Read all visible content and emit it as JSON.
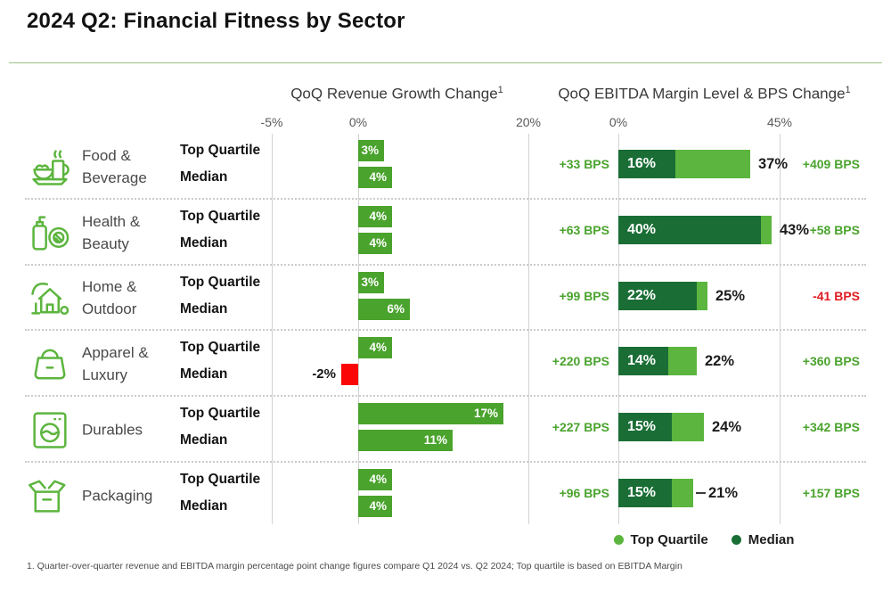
{
  "title": "2024 Q2: Financial Fitness by Sector",
  "panels": {
    "revenue": {
      "title": "QoQ Revenue Growth Change",
      "sup": "1",
      "ticks": [
        "-5%",
        "0%",
        "20%"
      ]
    },
    "ebitda": {
      "title": "QoQ EBITDA Margin Level & BPS Change",
      "sup": "1",
      "ticks": [
        "0%",
        "45%"
      ]
    }
  },
  "row_labels": {
    "top_quartile": "Top Quartile",
    "median": "Median"
  },
  "legend": {
    "items": [
      {
        "label": "Top Quartile",
        "color": "#5cb53e"
      },
      {
        "label": "Median",
        "color": "#1a6e35"
      }
    ]
  },
  "footnote": "1. Quarter-over-quarter revenue and EBITDA margin percentage point change figures compare Q1 2024 vs. Q2 2024; Top quartile is based on EBITDA Margin",
  "colors": {
    "revenue_bar_green": "#4aa32d",
    "top_quartile_light_green": "#5cb53e",
    "median_dark_green": "#1a6e35",
    "negative_bar_red": "#fb0606",
    "negative_text_red": "#e01b22",
    "bps_text_green": "#4aa32d",
    "rule_green": "#9dc284"
  },
  "sectors": [
    {
      "name": "Food & Beverage",
      "icon": "food-beverage",
      "revenue": {
        "top_quartile": 3,
        "median": 4
      },
      "ebitda": {
        "median_level": 16,
        "top_quartile_level": 37,
        "bps_left": "+33 BPS",
        "bps_right": "+409 BPS",
        "leader": false
      }
    },
    {
      "name": "Health & Beauty",
      "icon": "health-beauty",
      "revenue": {
        "top_quartile": 4,
        "median": 4
      },
      "ebitda": {
        "median_level": 40,
        "top_quartile_level": 43,
        "bps_left": "+63 BPS",
        "bps_right": "+58 BPS",
        "leader": false
      }
    },
    {
      "name": "Home & Outdoor",
      "icon": "home-outdoor",
      "revenue": {
        "top_quartile": 3,
        "median": 6
      },
      "ebitda": {
        "median_level": 22,
        "top_quartile_level": 25,
        "bps_left": "+99 BPS",
        "bps_right": "-41 BPS",
        "leader": false
      }
    },
    {
      "name": "Apparel & Luxury",
      "icon": "apparel-luxury",
      "revenue": {
        "top_quartile": 4,
        "median": -2
      },
      "ebitda": {
        "median_level": 14,
        "top_quartile_level": 22,
        "bps_left": "+220 BPS",
        "bps_right": "+360 BPS",
        "leader": false
      }
    },
    {
      "name": "Durables",
      "icon": "durables",
      "revenue": {
        "top_quartile": 17,
        "median": 11
      },
      "ebitda": {
        "median_level": 15,
        "top_quartile_level": 24,
        "bps_left": "+227 BPS",
        "bps_right": "+342 BPS",
        "leader": false
      }
    },
    {
      "name": "Packaging",
      "icon": "packaging",
      "revenue": {
        "top_quartile": 4,
        "median": 4
      },
      "ebitda": {
        "median_level": 15,
        "top_quartile_level": 21,
        "bps_left": "+96 BPS",
        "bps_right": "+157 BPS",
        "leader": true
      }
    }
  ],
  "chart_data": [
    {
      "type": "bar",
      "orientation": "horizontal",
      "title": "QoQ Revenue Growth Change",
      "categories": [
        "Food & Beverage",
        "Health & Beauty",
        "Home & Outdoor",
        "Apparel & Luxury",
        "Durables",
        "Packaging"
      ],
      "series": [
        {
          "name": "Top Quartile",
          "values": [
            3,
            4,
            3,
            4,
            17,
            4
          ]
        },
        {
          "name": "Median",
          "values": [
            4,
            4,
            6,
            -2,
            11,
            4
          ]
        }
      ],
      "unit": "%",
      "xlim": [
        -5,
        20
      ],
      "axis_ticks": [
        "-5%",
        "0%",
        "20%"
      ],
      "grid": true,
      "negative_color_used_for": "Apparel & Luxury Median"
    },
    {
      "type": "bar",
      "orientation": "horizontal",
      "stacked": true,
      "title": "QoQ EBITDA Margin Level & BPS Change",
      "categories": [
        "Food & Beverage",
        "Health & Beauty",
        "Home & Outdoor",
        "Apparel & Luxury",
        "Durables",
        "Packaging"
      ],
      "series": [
        {
          "name": "Median",
          "values": [
            16,
            40,
            22,
            14,
            15,
            15
          ]
        },
        {
          "name": "Top Quartile",
          "values": [
            37,
            43,
            25,
            22,
            24,
            21
          ]
        }
      ],
      "bps_change_left": [
        "+33 BPS",
        "+63 BPS",
        "+99 BPS",
        "+220 BPS",
        "+227 BPS",
        "+96 BPS"
      ],
      "bps_change_right": [
        "+409 BPS",
        "+58 BPS",
        "-41 BPS",
        "+360 BPS",
        "+342 BPS",
        "+157 BPS"
      ],
      "unit": "%",
      "xlim": [
        0,
        45
      ],
      "axis_ticks": [
        "0%",
        "45%"
      ],
      "grid": true,
      "legend_position": "bottom"
    }
  ]
}
